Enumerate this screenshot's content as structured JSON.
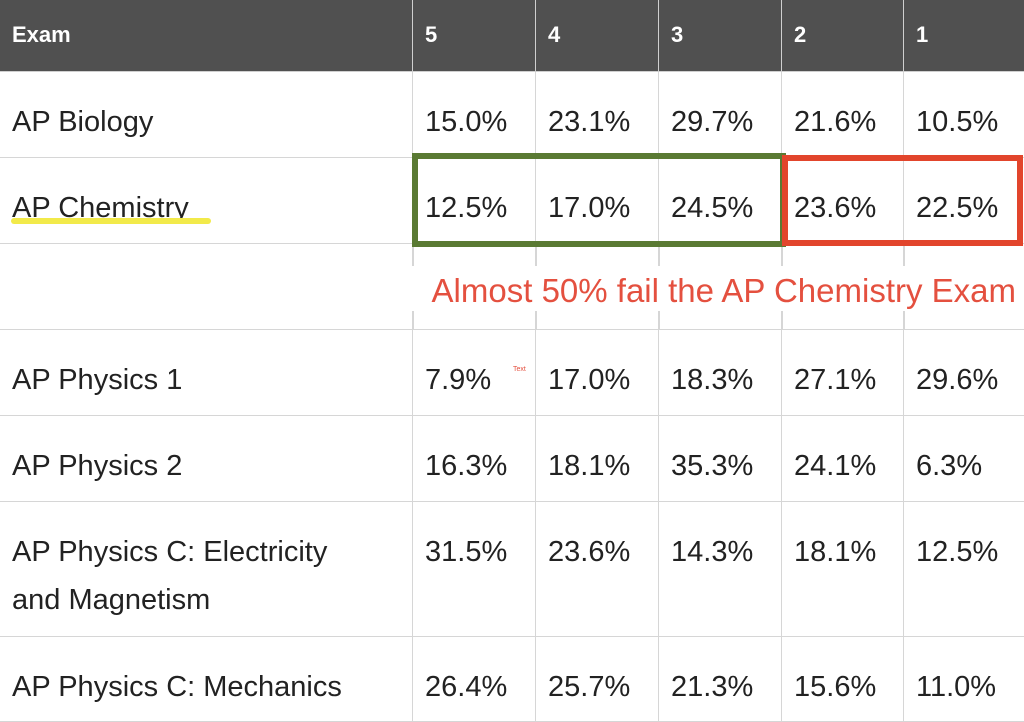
{
  "table": {
    "headers": [
      "Exam",
      "5",
      "4",
      "3",
      "2",
      "1"
    ],
    "rows": [
      {
        "exam": "AP Biology",
        "scores": [
          "15.0%",
          "23.1%",
          "29.7%",
          "21.6%",
          "10.5%"
        ]
      },
      {
        "exam": "AP Chemistry",
        "scores": [
          "12.5%",
          "17.0%",
          "24.5%",
          "23.6%",
          "22.5%"
        ]
      },
      {
        "exam": "AP Physics 1",
        "scores": [
          "7.9%",
          "17.0%",
          "18.3%",
          "27.1%",
          "29.6%"
        ]
      },
      {
        "exam": "AP Physics 2",
        "scores": [
          "16.3%",
          "18.1%",
          "35.3%",
          "24.1%",
          "6.3%"
        ]
      },
      {
        "exam": "AP Physics C: Electricity and Magnetism",
        "scores": [
          "31.5%",
          "23.6%",
          "14.3%",
          "18.1%",
          "12.5%"
        ]
      },
      {
        "exam": "AP Physics C: Mechanics",
        "scores": [
          "26.4%",
          "25.7%",
          "21.3%",
          "15.6%",
          "11.0%"
        ]
      }
    ]
  },
  "annotation": {
    "text": "Almost 50% fail the AP Chemistry Exam",
    "tiny_label": "Text",
    "pass_color": "#5a7a33",
    "fail_color": "#e2452c",
    "highlight_color": "#f2ea4a"
  }
}
